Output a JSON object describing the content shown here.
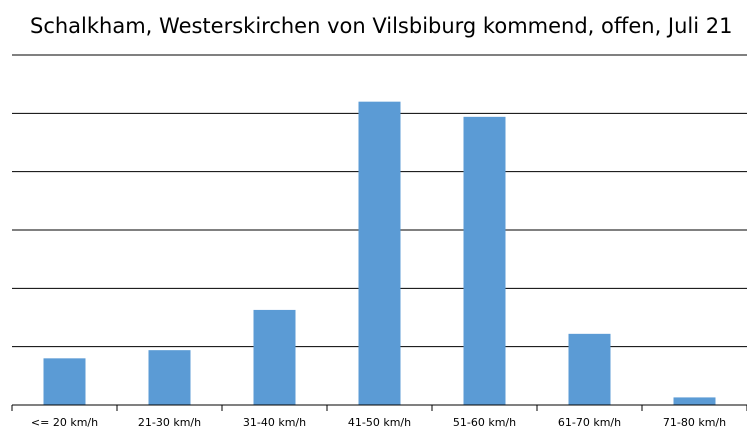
{
  "chart_data": {
    "type": "bar",
    "title": "Schalkham, Westerskirchen von Vilsbiburg kommend, offen, Juli 21",
    "xlabel": "",
    "ylabel": "",
    "categories": [
      "<= 20 km/h",
      "21-30 km/h",
      "31-40 km/h",
      "41-50 km/h",
      "51-60 km/h",
      "61-70 km/h",
      "71-80 km/h"
    ],
    "values": [
      0.8,
      0.94,
      1.63,
      5.2,
      4.94,
      1.22,
      0.13
    ],
    "ylim": [
      0,
      6
    ],
    "y_gridlines": [
      1,
      2,
      3,
      4,
      5,
      6
    ],
    "grid": true,
    "y_tick_labels_visible": false,
    "legend": "none",
    "bar_color": "#5b9bd5"
  }
}
